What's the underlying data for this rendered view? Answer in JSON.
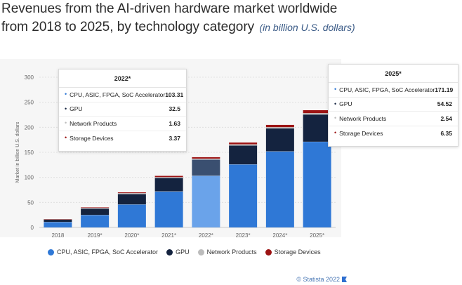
{
  "title": {
    "line1": "Revenues from the AI-driven hardware market worldwide",
    "line2": "from 2018 to 2025, by technology category",
    "unit": "(in billion U.S. dollars)"
  },
  "credit": "© Statista 2022",
  "colors": {
    "cpu": "#2f78d6",
    "gpu": "#14233f",
    "network": "#bcbcbc",
    "storage": "#9c1414",
    "highlight": "#6aa3ea",
    "highlight_gpu": "#3a4f70"
  },
  "chart_data": {
    "type": "bar",
    "stacked": true,
    "title": "Revenues from the AI-driven hardware market worldwide from 2018 to 2025, by technology category (in billion U.S. dollars)",
    "xlabel": "",
    "ylabel": "Market in billion U.S. dollars",
    "ylim": [
      0,
      300
    ],
    "yticks": [
      0,
      50,
      100,
      150,
      200,
      250,
      300
    ],
    "grid": true,
    "legend_position": "bottom",
    "highlighted_category": "2022*",
    "categories": [
      "2018",
      "2019*",
      "2020*",
      "2021*",
      "2022*",
      "2023*",
      "2024*",
      "2025*"
    ],
    "series": [
      {
        "name": "CPU, ASIC, FPGA, SoC Accelerator",
        "color_key": "cpu",
        "values": [
          11,
          25,
          46,
          72,
          103.31,
          126,
          152,
          171.19
        ]
      },
      {
        "name": "GPU",
        "color_key": "gpu",
        "values": [
          5,
          13,
          21,
          27,
          32.5,
          38,
          46,
          54.52
        ]
      },
      {
        "name": "Network Products",
        "color_key": "network",
        "values": [
          0.5,
          1,
          1.5,
          1.5,
          1.63,
          2,
          2.2,
          2.54
        ]
      },
      {
        "name": "Storage Devices",
        "color_key": "storage",
        "values": [
          0.8,
          1.5,
          2,
          3,
          3.37,
          4,
          5,
          6.35
        ]
      }
    ]
  },
  "legend": [
    {
      "label": "CPU, ASIC, FPGA, SoC Accelerator",
      "color_key": "cpu"
    },
    {
      "label": "GPU",
      "color_key": "gpu"
    },
    {
      "label": "Network Products",
      "color_key": "network"
    },
    {
      "label": "Storage Devices",
      "color_key": "storage"
    }
  ],
  "tooltips": {
    "t2022": {
      "header": "2022*",
      "rows": [
        {
          "name": "CPU, ASIC, FPGA, SoC Accelerator",
          "value": "103.31",
          "color_key": "cpu"
        },
        {
          "name": "GPU",
          "value": "32.5",
          "color_key": "gpu"
        },
        {
          "name": "Network Products",
          "value": "1.63",
          "color_key": "network"
        },
        {
          "name": "Storage Devices",
          "value": "3.37",
          "color_key": "storage"
        }
      ]
    },
    "t2025": {
      "header": "2025*",
      "rows": [
        {
          "name": "CPU, ASIC, FPGA, SoC Accelerator",
          "value": "171.19",
          "color_key": "cpu"
        },
        {
          "name": "GPU",
          "value": "54.52",
          "color_key": "gpu"
        },
        {
          "name": "Network Products",
          "value": "2.54",
          "color_key": "network"
        },
        {
          "name": "Storage Devices",
          "value": "6.35",
          "color_key": "storage"
        }
      ]
    }
  }
}
